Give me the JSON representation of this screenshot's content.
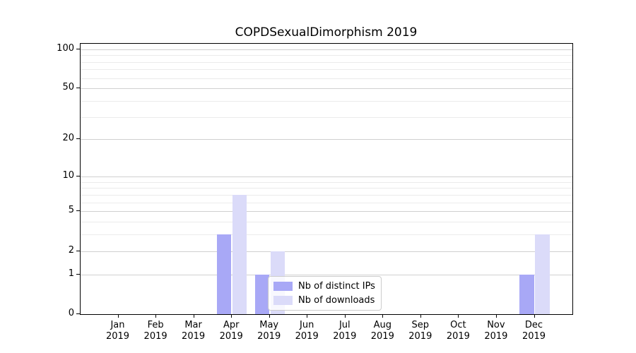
{
  "title": "COPDSexualDimorphism 2019",
  "chart_data": {
    "type": "bar",
    "title": "COPDSexualDimorphism 2019",
    "categories": [
      "Jan 2019",
      "Feb 2019",
      "Mar 2019",
      "Apr 2019",
      "May 2019",
      "Jun 2019",
      "Jul 2019",
      "Aug 2019",
      "Sep 2019",
      "Oct 2019",
      "Nov 2019",
      "Dec 2019"
    ],
    "series": [
      {
        "name": "Nb of distinct IPs",
        "color": "#a8a8f6",
        "values": [
          0,
          0,
          0,
          3,
          1,
          0,
          0,
          0,
          0,
          0,
          0,
          1
        ]
      },
      {
        "name": "Nb of downloads",
        "color": "#dbdbf9",
        "values": [
          0,
          0,
          0,
          7,
          2,
          0,
          0,
          0,
          0,
          0,
          0,
          3
        ]
      }
    ],
    "xlabel": "",
    "ylabel": "",
    "yscale": "log1p",
    "ylim": [
      0,
      110
    ],
    "yticks": [
      0,
      1,
      2,
      5,
      10,
      20,
      50,
      100
    ],
    "yticks_minor": [
      3,
      4,
      6,
      7,
      8,
      9,
      30,
      40,
      60,
      70,
      80,
      90
    ],
    "grid": "both",
    "legend_position": "lower center"
  },
  "colors": {
    "bar_distinct_ips": "#a8a8f6",
    "bar_downloads": "#dbdbf9",
    "grid_major": "#d0d0d0",
    "grid_minor": "#ebebeb",
    "axis": "#000000",
    "background": "#ffffff",
    "legend_border": "#cccccc"
  }
}
